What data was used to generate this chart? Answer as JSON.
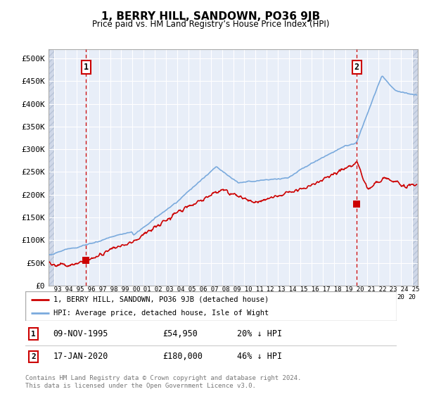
{
  "title": "1, BERRY HILL, SANDOWN, PO36 9JB",
  "subtitle": "Price paid vs. HM Land Registry’s House Price Index (HPI)",
  "ylim": [
    0,
    520000
  ],
  "yticks": [
    0,
    50000,
    100000,
    150000,
    200000,
    250000,
    300000,
    350000,
    400000,
    450000,
    500000
  ],
  "ytick_labels": [
    "£0",
    "£50K",
    "£100K",
    "£150K",
    "£200K",
    "£250K",
    "£300K",
    "£350K",
    "£400K",
    "£450K",
    "£500K"
  ],
  "xlim_start": 1992.5,
  "xlim_end": 2025.5,
  "hpi_color": "#7aaadd",
  "price_color": "#cc0000",
  "marker_color": "#cc0000",
  "transaction1_x": 1995.86,
  "transaction1_y": 54950,
  "transaction2_x": 2020.04,
  "transaction2_y": 180000,
  "legend_label1": "1, BERRY HILL, SANDOWN, PO36 9JB (detached house)",
  "legend_label2": "HPI: Average price, detached house, Isle of Wight",
  "table_row1": [
    "1",
    "09-NOV-1995",
    "£54,950",
    "20% ↓ HPI"
  ],
  "table_row2": [
    "2",
    "17-JAN-2020",
    "£180,000",
    "46% ↓ HPI"
  ],
  "footnote": "Contains HM Land Registry data © Crown copyright and database right 2024.\nThis data is licensed under the Open Government Licence v3.0.",
  "bg_color": "#e8eef8",
  "hatch_color": "#d0d8e8",
  "grid_color": "#ffffff"
}
